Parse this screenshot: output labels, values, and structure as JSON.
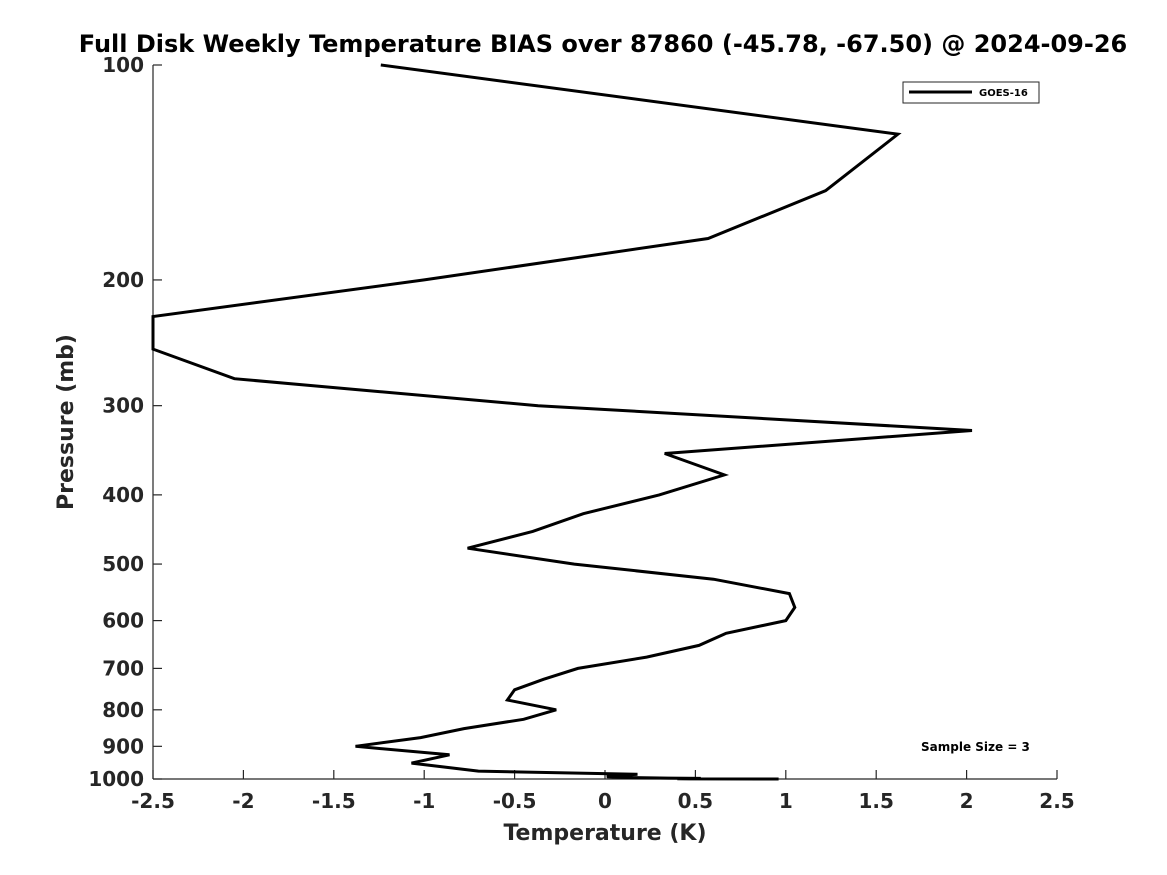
{
  "chart_data": {
    "type": "line",
    "title": "Full Disk Weekly Temperature BIAS over 87860 (-45.78, -67.50) @ 2024-09-26",
    "xlabel": "Temperature (K)",
    "ylabel": "Pressure (mb)",
    "xlim": [
      -2.5,
      2.5
    ],
    "ylim": [
      100,
      1000
    ],
    "yscale": "log",
    "reversed_y": true,
    "grid": false,
    "x_ticks": [
      -2.5,
      -2,
      -1.5,
      -1,
      -0.5,
      0,
      0.5,
      1,
      1.5,
      2,
      2.5
    ],
    "x_tick_labels": [
      "-2.5",
      "-2",
      "-1.5",
      "-1",
      "-0.5",
      "0",
      "0.5",
      "1",
      "1.5",
      "2",
      "2.5"
    ],
    "y_ticks": [
      100,
      200,
      300,
      400,
      500,
      600,
      700,
      800,
      900,
      1000
    ],
    "y_tick_labels": [
      "100",
      "200",
      "300",
      "400",
      "500",
      "600",
      "700",
      "800",
      "900",
      "1000"
    ],
    "legend": {
      "position": "top-right",
      "entries": [
        "GOES-16"
      ]
    },
    "annotation": "Sample Size = 3",
    "series": [
      {
        "name": "GOES-16",
        "color": "#000000",
        "points": [
          [
            -1.24,
            100
          ],
          [
            1.62,
            125
          ],
          [
            1.22,
            150
          ],
          [
            0.57,
            175
          ],
          [
            -1.0,
            200
          ],
          [
            -2.5,
            225
          ],
          [
            -2.5,
            250
          ],
          [
            -2.05,
            275
          ],
          [
            -0.37,
            300
          ],
          [
            2.03,
            325
          ],
          [
            0.33,
            350
          ],
          [
            0.66,
            375
          ],
          [
            0.3,
            400
          ],
          [
            -0.12,
            425
          ],
          [
            -0.4,
            450
          ],
          [
            -0.76,
            475
          ],
          [
            -0.17,
            500
          ],
          [
            0.6,
            525
          ],
          [
            1.02,
            550
          ],
          [
            1.05,
            575
          ],
          [
            1.0,
            600
          ],
          [
            0.67,
            625
          ],
          [
            0.52,
            650
          ],
          [
            0.23,
            675
          ],
          [
            -0.15,
            700
          ],
          [
            -0.34,
            725
          ],
          [
            -0.5,
            750
          ],
          [
            -0.54,
            775
          ],
          [
            -0.27,
            800
          ],
          [
            -0.45,
            825
          ],
          [
            -0.78,
            850
          ],
          [
            -1.02,
            875
          ],
          [
            -1.38,
            900
          ],
          [
            -0.86,
            925
          ],
          [
            -1.07,
            950
          ],
          [
            -0.7,
            975
          ],
          [
            0.18,
            985
          ],
          [
            0.03,
            990
          ],
          [
            0.01,
            993
          ],
          [
            0.09,
            995
          ],
          [
            0.35,
            997
          ],
          [
            0.53,
            998
          ],
          [
            0.49,
            999
          ],
          [
            0.4,
            999.5
          ],
          [
            0.47,
            999.8
          ],
          [
            0.96,
            1000
          ]
        ]
      }
    ]
  }
}
